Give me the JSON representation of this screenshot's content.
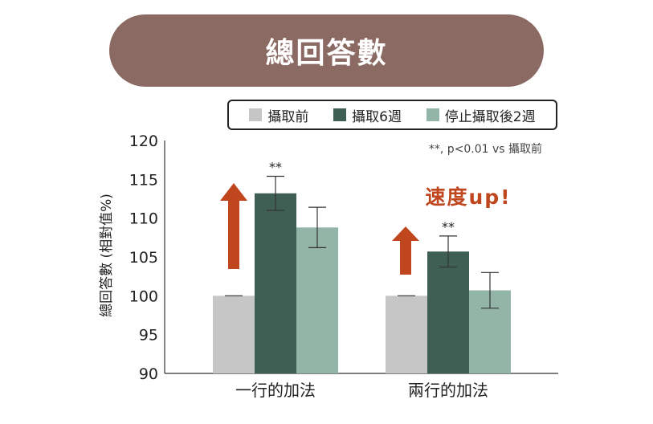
{
  "title": "總回答數",
  "chart_data": {
    "type": "bar",
    "categories": [
      "一行的加法",
      "兩行的加法"
    ],
    "series": [
      {
        "name": "攝取前",
        "values": [
          100,
          100
        ],
        "errors": [
          0,
          0
        ],
        "color": "#c6c6c6"
      },
      {
        "name": "攝取6週",
        "values": [
          113.2,
          105.7
        ],
        "errors": [
          2.2,
          2.0
        ],
        "color": "#3f5f55"
      },
      {
        "name": "停止攝取後2週",
        "values": [
          108.8,
          100.7
        ],
        "errors": [
          2.6,
          2.3
        ],
        "color": "#92b5a8"
      }
    ],
    "significance": [
      {
        "category_index": 0,
        "series_index": 1,
        "label": "**"
      },
      {
        "category_index": 1,
        "series_index": 1,
        "label": "**"
      }
    ],
    "note": "**, p<0.01 vs 攝取前",
    "annotation": "速度up!",
    "ylabel": "總回答數 (相對值%)",
    "ylim": [
      90,
      120
    ],
    "yticks": [
      90,
      95,
      100,
      105,
      110,
      115,
      120
    ],
    "legend_position": "top",
    "accent_color": "#c0461e"
  }
}
